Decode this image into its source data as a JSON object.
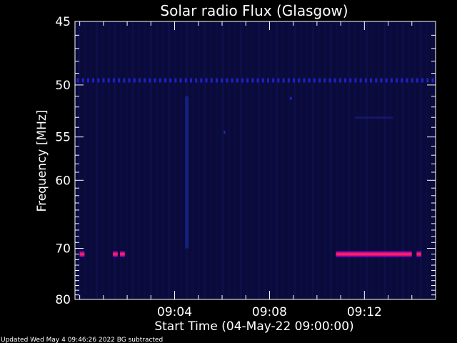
{
  "chart_data": {
    "type": "heatmap",
    "title": "Solar radio Flux (Glasgow)",
    "ylabel": "Frequency [MHz]",
    "xlabel": "Start Time (04-May-22 09:00:00)",
    "footer": "Updated Wed May  4 09:46:26 2022   BG subtracted",
    "x_range_minutes": [
      -0.2,
      15.0
    ],
    "y_range_mhz": [
      45,
      80
    ],
    "y_ticks": [
      {
        "value": 45,
        "label": "45"
      },
      {
        "value": 50,
        "label": "50"
      },
      {
        "value": 55,
        "label": "55"
      },
      {
        "value": 60,
        "label": "60"
      },
      {
        "value": 70,
        "label": "70"
      },
      {
        "value": 80,
        "label": "80"
      }
    ],
    "x_ticks": [
      {
        "value": 4,
        "label": "09:04"
      },
      {
        "value": 8,
        "label": "09:08"
      },
      {
        "value": 12,
        "label": "09:12"
      }
    ],
    "series": [
      {
        "frequency_mhz": 71,
        "bursts": [
          {
            "start_min": 0.0,
            "end_min": 0.2
          },
          {
            "start_min": 1.4,
            "end_min": 1.6
          },
          {
            "start_min": 1.7,
            "end_min": 1.9
          },
          {
            "start_min": 10.8,
            "end_min": 14.0
          },
          {
            "start_min": 14.2,
            "end_min": 14.4
          }
        ]
      }
    ],
    "interference_frequency_mhz": 49.6,
    "interference_count": 70,
    "spike_frequency_mhz": 51.2,
    "spike_time_min": 8.9,
    "colors": {
      "background": "#000000",
      "plot_bg": "#0a0b3a",
      "burst": "#ff1f5a",
      "burst_edge": "#8a00c8",
      "interference": "#2020c8",
      "axis": "#ffffff"
    }
  }
}
